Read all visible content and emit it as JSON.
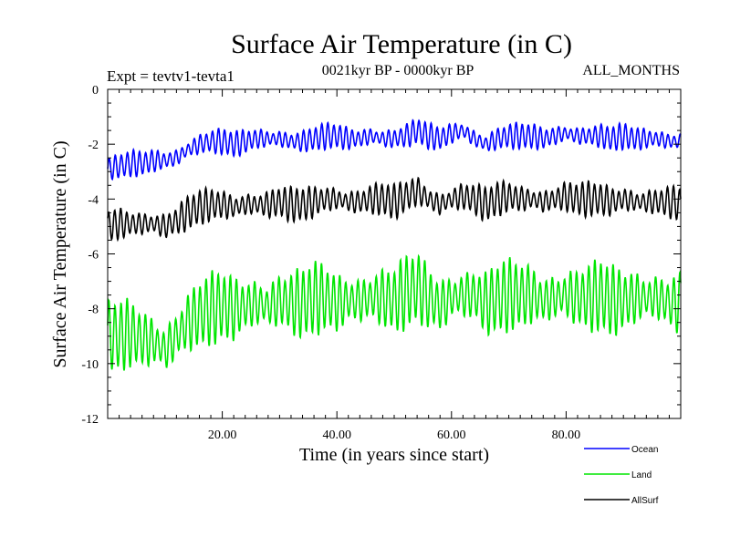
{
  "chart_data": {
    "type": "line",
    "title": "Surface Air Temperature (in C)",
    "subtitle": "0021kyr BP - 0000kyr BP",
    "experiment": "Expt = tevtv1-tevta1",
    "months": "ALL_MONTHS",
    "xlabel": "Time (in years since start)",
    "ylabel": "Surface Air Temperature (in C)",
    "xlim": [
      0,
      100
    ],
    "ylim": [
      -12,
      0
    ],
    "xticks": [
      20,
      40,
      60,
      80
    ],
    "xtick_labels": [
      "20.00",
      "40.00",
      "60.00",
      "80.00"
    ],
    "yticks": [
      0,
      -2,
      -4,
      -6,
      -8,
      -10,
      -12
    ],
    "ytick_labels": [
      "0",
      "-2",
      "-4",
      "-6",
      "-8",
      "-10",
      "-12"
    ],
    "legend_position": "bottom-right",
    "series": [
      {
        "name": "Ocean",
        "color": "#0000ff",
        "x": [
          0,
          2,
          4,
          6,
          8,
          10,
          12,
          14,
          16,
          18,
          20,
          22,
          24,
          26,
          28,
          30,
          32,
          34,
          36,
          38,
          40,
          42,
          44,
          46,
          48,
          50,
          52,
          54,
          56,
          58,
          60,
          62,
          64,
          66,
          68,
          70,
          72,
          74,
          76,
          78,
          80,
          82,
          84,
          86,
          88,
          90,
          92,
          94,
          96,
          98,
          100
        ],
        "trend": [
          -2.9,
          -2.8,
          -2.7,
          -2.7,
          -2.6,
          -2.6,
          -2.5,
          -2.2,
          -2.0,
          -1.9,
          -1.9,
          -2.0,
          -1.9,
          -1.8,
          -1.8,
          -1.8,
          -1.9,
          -1.9,
          -1.8,
          -1.7,
          -1.7,
          -1.8,
          -1.8,
          -1.7,
          -1.8,
          -1.8,
          -1.7,
          -1.5,
          -1.7,
          -1.8,
          -1.6,
          -1.5,
          -1.8,
          -2.0,
          -1.8,
          -1.7,
          -1.7,
          -1.7,
          -1.8,
          -1.7,
          -1.6,
          -1.7,
          -1.7,
          -1.7,
          -1.8,
          -1.7,
          -1.8,
          -1.8,
          -1.8,
          -1.9,
          -1.9
        ],
        "amplitude": 0.45
      },
      {
        "name": "Land",
        "color": "#00e600",
        "x": [
          0,
          2,
          4,
          6,
          8,
          10,
          12,
          14,
          16,
          18,
          20,
          22,
          24,
          26,
          28,
          30,
          32,
          34,
          36,
          38,
          40,
          42,
          44,
          46,
          48,
          50,
          52,
          54,
          56,
          58,
          60,
          62,
          64,
          66,
          68,
          70,
          72,
          74,
          76,
          78,
          80,
          82,
          84,
          86,
          88,
          90,
          92,
          94,
          96,
          98,
          100
        ],
        "trend": [
          -9.0,
          -9.0,
          -8.9,
          -9.1,
          -9.2,
          -9.5,
          -9.0,
          -8.5,
          -8.2,
          -8.0,
          -7.9,
          -8.0,
          -7.9,
          -7.8,
          -7.9,
          -7.7,
          -7.8,
          -7.8,
          -7.6,
          -7.6,
          -7.8,
          -7.7,
          -7.7,
          -7.6,
          -7.6,
          -7.7,
          -7.4,
          -7.2,
          -7.6,
          -7.9,
          -7.6,
          -7.5,
          -7.5,
          -7.8,
          -7.6,
          -7.5,
          -7.5,
          -7.5,
          -7.7,
          -7.6,
          -7.5,
          -7.6,
          -7.6,
          -7.5,
          -7.7,
          -7.7,
          -7.6,
          -7.6,
          -7.6,
          -7.8,
          -7.8
        ],
        "amplitude": 1.25
      },
      {
        "name": "AllSurf",
        "color": "#000000",
        "x": [
          0,
          2,
          4,
          6,
          8,
          10,
          12,
          14,
          16,
          18,
          20,
          22,
          24,
          26,
          28,
          30,
          32,
          34,
          36,
          38,
          40,
          42,
          44,
          46,
          48,
          50,
          52,
          54,
          56,
          58,
          60,
          62,
          64,
          66,
          68,
          70,
          72,
          74,
          76,
          78,
          80,
          82,
          84,
          86,
          88,
          90,
          92,
          94,
          96,
          98,
          100
        ],
        "trend": [
          -5.0,
          -4.9,
          -4.9,
          -4.9,
          -4.9,
          -5.0,
          -4.8,
          -4.5,
          -4.3,
          -4.2,
          -4.2,
          -4.3,
          -4.2,
          -4.2,
          -4.2,
          -4.1,
          -4.2,
          -4.2,
          -4.1,
          -4.0,
          -4.0,
          -4.1,
          -4.1,
          -4.0,
          -4.0,
          -4.1,
          -3.9,
          -3.7,
          -4.0,
          -4.2,
          -4.0,
          -3.9,
          -4.0,
          -4.2,
          -4.0,
          -3.9,
          -4.0,
          -4.0,
          -4.1,
          -4.0,
          -3.9,
          -4.0,
          -4.0,
          -4.0,
          -4.1,
          -4.0,
          -4.1,
          -4.1,
          -4.1,
          -4.1,
          -4.2
        ],
        "amplitude": 0.6
      }
    ]
  }
}
